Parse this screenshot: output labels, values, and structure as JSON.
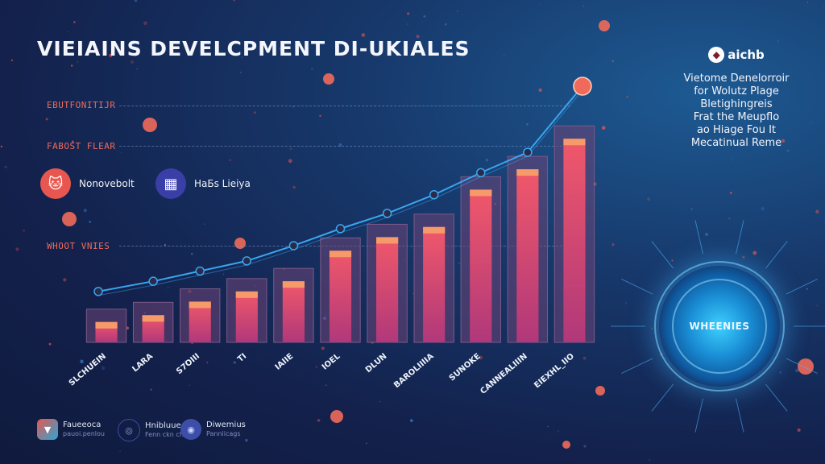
{
  "title": "VIEIAINS DEVELCPMENT DI-UKIALES",
  "reference_lines": [
    {
      "label": "EBUTFONITIJR"
    },
    {
      "label": "FABOST FLEAR"
    },
    {
      "label": "WHOOT VNIES"
    }
  ],
  "legend": [
    {
      "label": "Nonovebolt",
      "icon": "cat-mascot-icon",
      "color": "#e8574f"
    },
    {
      "label": "HaБs Lieiya",
      "icon": "building-icon",
      "color": "#3a3fa8"
    }
  ],
  "side_panel": {
    "brand": "aichb",
    "brand_icon": "mascot-logo-icon",
    "description_lines": [
      "Vietome Denelorroir",
      "for Wolutz Plage",
      "Bletighingreis",
      "Frat the Meupflo",
      "ao Hiage Fou It",
      "Mecatinual Reme"
    ]
  },
  "orb": {
    "label": "WHEENIES"
  },
  "footer": [
    {
      "name": "Faueeoca",
      "sub": "pauoi.penlou",
      "icon": "shield-logo-icon",
      "color": "#e8574f"
    },
    {
      "name": "Hnibluue",
      "sub": "Fenn ckn chl",
      "icon": "badge-logo-icon",
      "color": "#3c4ea8"
    },
    {
      "name": "Diwemius",
      "sub": "Panniicags",
      "icon": "globe-logo-icon",
      "color": "#3c4ea8"
    }
  ],
  "colors": {
    "bar_fill": "#f0586a",
    "bar_top": "#f79a6a",
    "bar_frame": "#6b4d7a",
    "line": "#39a6ef",
    "accent": "#ef6a5a"
  },
  "chart_data": {
    "type": "bar",
    "title": "VIEIAINS DEVELCPMENT DI-UKIALES",
    "categories": [
      "SLCHUEIN",
      "LARA",
      "S7OIII",
      "TI",
      "IAIIE",
      "IOEL",
      "DLUN",
      "BAROLIIIIA",
      "SUNOKE",
      "CANNEALIIIN",
      "EIEXHL_IIO"
    ],
    "series": [
      {
        "name": "bars",
        "values": [
          12,
          16,
          24,
          30,
          36,
          54,
          62,
          68,
          90,
          102,
          120
        ]
      },
      {
        "name": "trend",
        "type": "line",
        "values": [
          30,
          36,
          42,
          48,
          57,
          67,
          76,
          87,
          100,
          112,
          151
        ]
      }
    ],
    "ylim": [
      0,
      160
    ],
    "xlabel": "",
    "ylabel": "",
    "grid": false,
    "legend_position": "top-left"
  }
}
